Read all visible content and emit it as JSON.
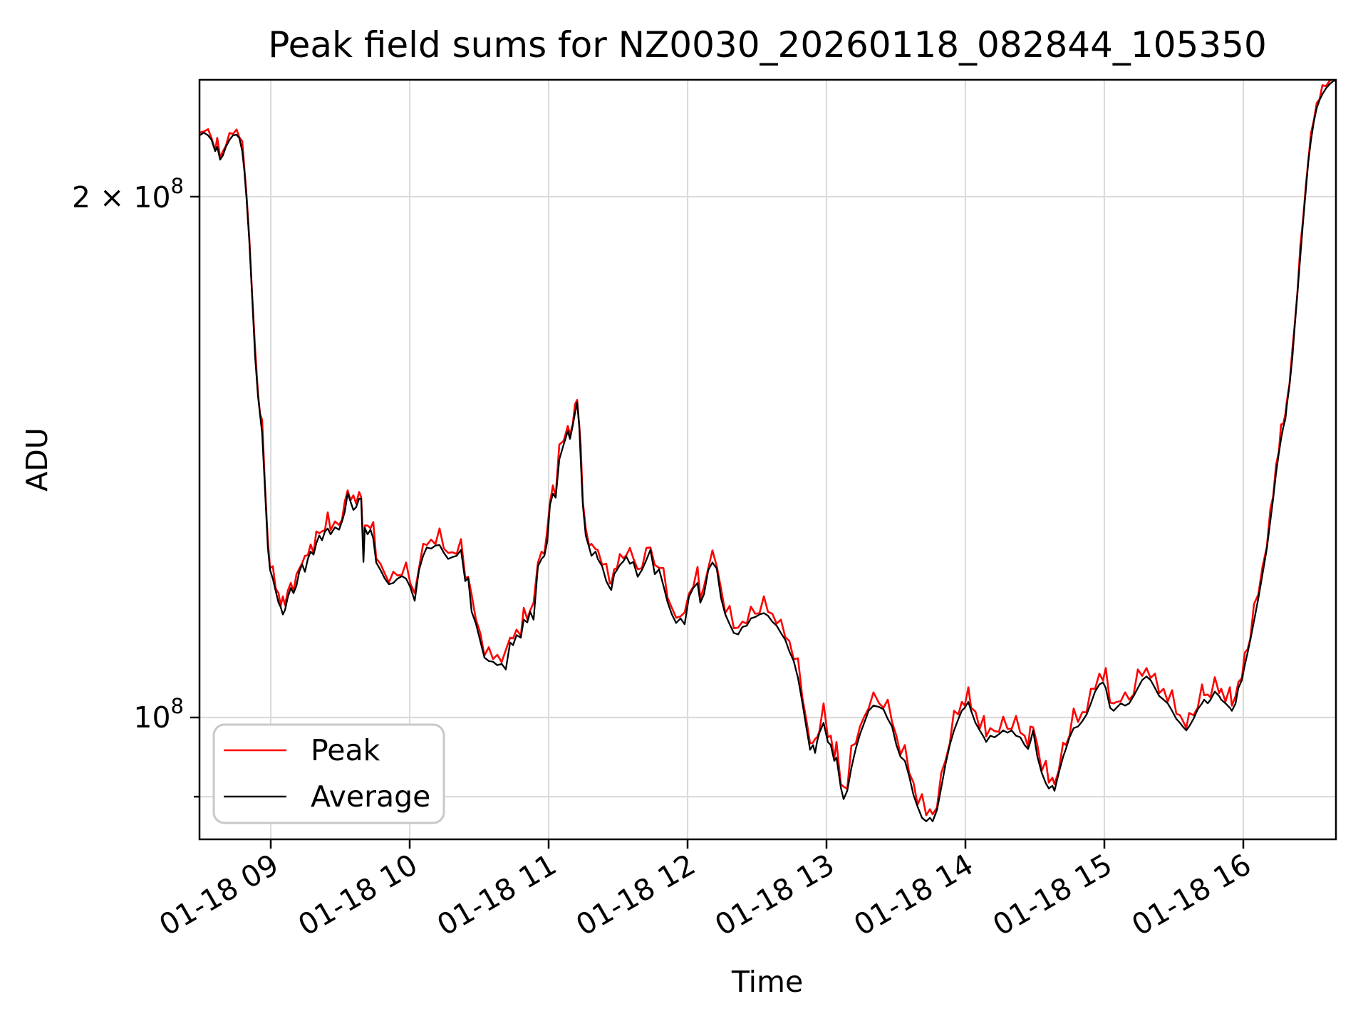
{
  "title": "Peak field sums for NZ0030_20260118_082844_105350",
  "axes": {
    "xlabel": "Time",
    "ylabel": "ADU",
    "x_tick_labels": [
      "01-18 09",
      "01-18 10",
      "01-18 11",
      "01-18 12",
      "01-18 13",
      "01-18 14",
      "01-18 15",
      "01-18 16"
    ],
    "y_tick_labels": [
      {
        "mantissa": "2 × 10",
        "exponent": "8",
        "value_adu_millions": 200
      },
      {
        "mantissa": "10",
        "exponent": "8",
        "value_adu_millions": 100
      }
    ]
  },
  "legend": {
    "items": [
      {
        "label": "Peak",
        "color": "#ff0000"
      },
      {
        "label": "Average",
        "color": "#000000"
      }
    ]
  },
  "colors": {
    "background": "#ffffff",
    "spine": "#000000",
    "grid": "#dcdcdc",
    "legend_border": "#c8c8c8",
    "peak_line": "#ff0000",
    "average_line": "#000000"
  },
  "chart_data": {
    "type": "line",
    "title": "Peak field sums for NZ0030_20260118_082844_105350",
    "xlabel": "Time",
    "ylabel": "ADU",
    "yscale": "log",
    "x_axis_units": "hours of day on 2026-01-18",
    "xlim_hours": [
      8.487,
      16.667
    ],
    "ylim_adu_millions": [
      85.0,
      233.6
    ],
    "x_ticks_hours": [
      9,
      10,
      11,
      12,
      13,
      14,
      15,
      16
    ],
    "y_gridlines_adu_millions": [
      200,
      100,
      90
    ],
    "legend_position": "lower left",
    "grid": true,
    "points_t_avgADUmillions": [
      [
        8.487,
        217.0
      ],
      [
        8.518,
        217.8
      ],
      [
        8.549,
        217.0
      ],
      [
        8.574,
        215.7
      ],
      [
        8.6,
        212.5
      ],
      [
        8.615,
        213.7
      ],
      [
        8.636,
        210.1
      ],
      [
        8.656,
        211.3
      ],
      [
        8.677,
        213.7
      ],
      [
        8.703,
        215.7
      ],
      [
        8.728,
        217.0
      ],
      [
        8.754,
        217.2
      ],
      [
        8.774,
        216.2
      ],
      [
        8.795,
        212.5
      ],
      [
        8.81,
        206.9
      ],
      [
        8.826,
        199.2
      ],
      [
        8.846,
        188.2
      ],
      [
        8.867,
        174.5
      ],
      [
        8.887,
        161.7
      ],
      [
        8.908,
        153.4
      ],
      [
        8.923,
        149.6
      ],
      [
        8.938,
        146.0
      ],
      [
        8.959,
        135.3
      ],
      [
        8.979,
        125.4
      ],
      [
        8.995,
        121.7
      ],
      [
        9.015,
        120.3
      ],
      [
        9.036,
        118.3
      ],
      [
        9.056,
        116.5
      ],
      [
        9.072,
        115.8
      ],
      [
        9.087,
        114.7
      ],
      [
        9.103,
        115.4
      ],
      [
        9.123,
        117.4
      ],
      [
        9.144,
        118.8
      ],
      [
        9.164,
        118.0
      ],
      [
        9.185,
        119.2
      ],
      [
        9.205,
        121.4
      ],
      [
        9.226,
        122.6
      ],
      [
        9.246,
        121.4
      ],
      [
        9.267,
        123.5
      ],
      [
        9.287,
        124.7
      ],
      [
        9.308,
        124.2
      ],
      [
        9.328,
        126.1
      ],
      [
        9.349,
        127.4
      ],
      [
        9.369,
        126.6
      ],
      [
        9.39,
        128.1
      ],
      [
        9.41,
        128.6
      ],
      [
        9.431,
        127.6
      ],
      [
        9.462,
        128.8
      ],
      [
        9.492,
        128.4
      ],
      [
        9.513,
        129.8
      ],
      [
        9.533,
        131.5
      ],
      [
        9.554,
        134.8
      ],
      [
        9.574,
        133.3
      ],
      [
        9.595,
        131.8
      ],
      [
        9.615,
        132.3
      ],
      [
        9.636,
        133.8
      ],
      [
        9.651,
        133.8
      ],
      [
        9.667,
        123.0
      ],
      [
        9.677,
        128.7
      ],
      [
        9.697,
        127.6
      ],
      [
        9.718,
        128.4
      ],
      [
        9.738,
        126.9
      ],
      [
        9.759,
        122.9
      ],
      [
        9.79,
        121.7
      ],
      [
        9.821,
        120.3
      ],
      [
        9.851,
        119.4
      ],
      [
        9.882,
        119.6
      ],
      [
        9.913,
        120.3
      ],
      [
        9.944,
        120.7
      ],
      [
        9.974,
        120.3
      ],
      [
        10.005,
        118.9
      ],
      [
        10.036,
        116.8
      ],
      [
        10.067,
        121.7
      ],
      [
        10.097,
        124.0
      ],
      [
        10.123,
        125.4
      ],
      [
        10.154,
        125.2
      ],
      [
        10.185,
        125.7
      ],
      [
        10.215,
        125.8
      ],
      [
        10.246,
        124.5
      ],
      [
        10.277,
        123.5
      ],
      [
        10.308,
        123.8
      ],
      [
        10.338,
        124.0
      ],
      [
        10.369,
        125.0
      ],
      [
        10.4,
        119.9
      ],
      [
        10.421,
        120.4
      ],
      [
        10.446,
        115.1
      ],
      [
        10.477,
        113.3
      ],
      [
        10.508,
        110.7
      ],
      [
        10.538,
        108.3
      ],
      [
        10.569,
        107.8
      ],
      [
        10.6,
        107.7
      ],
      [
        10.631,
        107.2
      ],
      [
        10.662,
        107.4
      ],
      [
        10.692,
        106.6
      ],
      [
        10.723,
        110.5
      ],
      [
        10.744,
        110.1
      ],
      [
        10.769,
        111.6
      ],
      [
        10.8,
        111.2
      ],
      [
        10.821,
        113.9
      ],
      [
        10.846,
        113.5
      ],
      [
        10.867,
        115.1
      ],
      [
        10.892,
        113.9
      ],
      [
        10.923,
        122.3
      ],
      [
        10.949,
        123.5
      ],
      [
        10.969,
        124.0
      ],
      [
        10.99,
        126.4
      ],
      [
        11.01,
        132.7
      ],
      [
        11.031,
        134.7
      ],
      [
        11.051,
        134.0
      ],
      [
        11.077,
        141.0
      ],
      [
        11.108,
        143.8
      ],
      [
        11.138,
        146.4
      ],
      [
        11.154,
        144.9
      ],
      [
        11.174,
        147.5
      ],
      [
        11.19,
        149.9
      ],
      [
        11.205,
        152.1
      ],
      [
        11.221,
        147.1
      ],
      [
        11.231,
        141.0
      ],
      [
        11.246,
        132.7
      ],
      [
        11.267,
        127.4
      ],
      [
        11.292,
        125.4
      ],
      [
        11.308,
        124.0
      ],
      [
        11.338,
        124.7
      ],
      [
        11.354,
        123.5
      ],
      [
        11.385,
        122.3
      ],
      [
        11.415,
        119.9
      ],
      [
        11.441,
        118.8
      ],
      [
        11.451,
        118.5
      ],
      [
        11.472,
        121.0
      ],
      [
        11.492,
        121.7
      ],
      [
        11.513,
        122.5
      ],
      [
        11.538,
        123.1
      ],
      [
        11.559,
        123.9
      ],
      [
        11.585,
        122.7
      ],
      [
        11.61,
        123.0
      ],
      [
        11.641,
        120.6
      ],
      [
        11.672,
        121.7
      ],
      [
        11.703,
        123.3
      ],
      [
        11.733,
        125.0
      ],
      [
        11.764,
        121.0
      ],
      [
        11.795,
        121.8
      ],
      [
        11.826,
        119.2
      ],
      [
        11.856,
        116.6
      ],
      [
        11.887,
        114.7
      ],
      [
        11.918,
        113.4
      ],
      [
        11.949,
        114.1
      ],
      [
        11.979,
        113.2
      ],
      [
        12.01,
        117.4
      ],
      [
        12.041,
        118.8
      ],
      [
        12.072,
        119.6
      ],
      [
        12.092,
        116.5
      ],
      [
        12.118,
        117.8
      ],
      [
        12.149,
        121.7
      ],
      [
        12.179,
        122.9
      ],
      [
        12.21,
        121.9
      ],
      [
        12.241,
        117.2
      ],
      [
        12.272,
        114.7
      ],
      [
        12.303,
        113.2
      ],
      [
        12.333,
        111.9
      ],
      [
        12.364,
        111.7
      ],
      [
        12.395,
        112.8
      ],
      [
        12.426,
        113.0
      ],
      [
        12.456,
        114.1
      ],
      [
        12.487,
        114.3
      ],
      [
        12.518,
        114.7
      ],
      [
        12.549,
        114.9
      ],
      [
        12.579,
        114.5
      ],
      [
        12.61,
        113.6
      ],
      [
        12.641,
        113.0
      ],
      [
        12.672,
        111.9
      ],
      [
        12.703,
        110.9
      ],
      [
        12.733,
        109.2
      ],
      [
        12.764,
        107.8
      ],
      [
        12.795,
        105.4
      ],
      [
        12.826,
        102.0
      ],
      [
        12.856,
        98.6
      ],
      [
        12.882,
        95.8
      ],
      [
        12.903,
        96.4
      ],
      [
        12.918,
        95.4
      ],
      [
        12.933,
        96.9
      ],
      [
        12.949,
        98.0
      ],
      [
        12.979,
        99.3
      ],
      [
        13.01,
        96.8
      ],
      [
        13.031,
        96.4
      ],
      [
        13.056,
        94.4
      ],
      [
        13.072,
        94.8
      ],
      [
        13.103,
        91.1
      ],
      [
        13.123,
        89.7
      ],
      [
        13.149,
        90.7
      ],
      [
        13.179,
        93.5
      ],
      [
        13.21,
        95.9
      ],
      [
        13.241,
        97.8
      ],
      [
        13.272,
        99.3
      ],
      [
        13.303,
        100.9
      ],
      [
        13.338,
        101.6
      ],
      [
        13.379,
        101.4
      ],
      [
        13.41,
        101.1
      ],
      [
        13.441,
        99.8
      ],
      [
        13.472,
        98.8
      ],
      [
        13.503,
        96.4
      ],
      [
        13.533,
        94.9
      ],
      [
        13.564,
        94.4
      ],
      [
        13.595,
        92.5
      ],
      [
        13.626,
        90.2
      ],
      [
        13.656,
        88.8
      ],
      [
        13.687,
        87.5
      ],
      [
        13.718,
        87.1
      ],
      [
        13.744,
        87.5
      ],
      [
        13.764,
        87.1
      ],
      [
        13.795,
        88.4
      ],
      [
        13.826,
        91.1
      ],
      [
        13.856,
        93.9
      ],
      [
        13.887,
        96.4
      ],
      [
        13.918,
        98.3
      ],
      [
        13.949,
        99.8
      ],
      [
        13.974,
        100.9
      ],
      [
        13.995,
        101.3
      ],
      [
        14.021,
        102.1
      ],
      [
        14.041,
        100.9
      ],
      [
        14.072,
        99.3
      ],
      [
        14.103,
        98.3
      ],
      [
        14.133,
        97.4
      ],
      [
        14.149,
        96.8
      ],
      [
        14.179,
        97.6
      ],
      [
        14.21,
        97.4
      ],
      [
        14.241,
        97.8
      ],
      [
        14.272,
        98.3
      ],
      [
        14.303,
        98.0
      ],
      [
        14.333,
        98.3
      ],
      [
        14.364,
        97.6
      ],
      [
        14.395,
        97.4
      ],
      [
        14.426,
        96.4
      ],
      [
        14.451,
        95.9
      ],
      [
        14.467,
        96.8
      ],
      [
        14.487,
        98.3
      ],
      [
        14.518,
        94.9
      ],
      [
        14.549,
        92.9
      ],
      [
        14.579,
        91.6
      ],
      [
        14.6,
        91.0
      ],
      [
        14.626,
        91.3
      ],
      [
        14.641,
        90.7
      ],
      [
        14.672,
        92.9
      ],
      [
        14.703,
        94.9
      ],
      [
        14.723,
        95.9
      ],
      [
        14.749,
        97.4
      ],
      [
        14.779,
        98.6
      ],
      [
        14.81,
        98.8
      ],
      [
        14.841,
        99.5
      ],
      [
        14.872,
        100.4
      ],
      [
        14.903,
        101.9
      ],
      [
        14.933,
        103.5
      ],
      [
        14.964,
        104.5
      ],
      [
        14.99,
        104.8
      ],
      [
        15.01,
        104.0
      ],
      [
        15.041,
        101.3
      ],
      [
        15.067,
        100.9
      ],
      [
        15.087,
        101.3
      ],
      [
        15.118,
        101.9
      ],
      [
        15.149,
        101.6
      ],
      [
        15.179,
        101.9
      ],
      [
        15.21,
        102.9
      ],
      [
        15.241,
        104.0
      ],
      [
        15.272,
        105.1
      ],
      [
        15.303,
        105.6
      ],
      [
        15.333,
        105.1
      ],
      [
        15.364,
        104.0
      ],
      [
        15.395,
        102.9
      ],
      [
        15.426,
        102.4
      ],
      [
        15.456,
        101.9
      ],
      [
        15.487,
        100.9
      ],
      [
        15.518,
        99.8
      ],
      [
        15.544,
        99.3
      ],
      [
        15.564,
        98.8
      ],
      [
        15.59,
        98.3
      ],
      [
        15.61,
        98.8
      ],
      [
        15.641,
        99.8
      ],
      [
        15.672,
        101.1
      ],
      [
        15.703,
        101.9
      ],
      [
        15.718,
        102.4
      ],
      [
        15.744,
        101.9
      ],
      [
        15.764,
        102.4
      ],
      [
        15.795,
        103.5
      ],
      [
        15.826,
        102.9
      ],
      [
        15.841,
        102.4
      ],
      [
        15.872,
        101.9
      ],
      [
        15.903,
        101.3
      ],
      [
        15.918,
        100.9
      ],
      [
        15.944,
        101.9
      ],
      [
        15.964,
        104.0
      ],
      [
        15.99,
        105.1
      ],
      [
        16.01,
        107.2
      ],
      [
        16.031,
        109.0
      ],
      [
        16.051,
        110.9
      ],
      [
        16.077,
        113.7
      ],
      [
        16.108,
        117.2
      ],
      [
        16.138,
        121.0
      ],
      [
        16.169,
        125.2
      ],
      [
        16.195,
        130.0
      ],
      [
        16.215,
        133.8
      ],
      [
        16.236,
        138.5
      ],
      [
        16.256,
        142.2
      ],
      [
        16.272,
        144.9
      ],
      [
        16.287,
        147.1
      ],
      [
        16.303,
        148.8
      ],
      [
        16.313,
        151.4
      ],
      [
        16.333,
        155.7
      ],
      [
        16.354,
        161.7
      ],
      [
        16.369,
        168.0
      ],
      [
        16.39,
        176.2
      ],
      [
        16.41,
        184.7
      ],
      [
        16.431,
        193.7
      ],
      [
        16.451,
        202.1
      ],
      [
        16.467,
        209.3
      ],
      [
        16.487,
        215.7
      ],
      [
        16.508,
        221.1
      ],
      [
        16.528,
        225.0
      ],
      [
        16.549,
        227.5
      ],
      [
        16.569,
        229.2
      ],
      [
        16.595,
        231.0
      ],
      [
        16.621,
        232.3
      ],
      [
        16.646,
        233.2
      ],
      [
        16.667,
        233.6
      ]
    ],
    "series": [
      {
        "name": "Peak",
        "color": "#ff0000",
        "derivation": "average value plus small positive spike, cycling through spike_pattern_ADUmillions",
        "spike_pattern_ADUmillions": [
          0.8,
          0.3,
          1.8,
          0.5,
          0.2,
          2.6,
          0.6,
          1.2,
          0.3,
          2.0,
          0.4,
          1.5,
          0.25,
          2.8,
          0.7,
          1.0
        ]
      },
      {
        "name": "Average",
        "color": "#000000",
        "derivation": "points_t_avgADUmillions"
      }
    ]
  },
  "layout_note_visible_values_only": true
}
